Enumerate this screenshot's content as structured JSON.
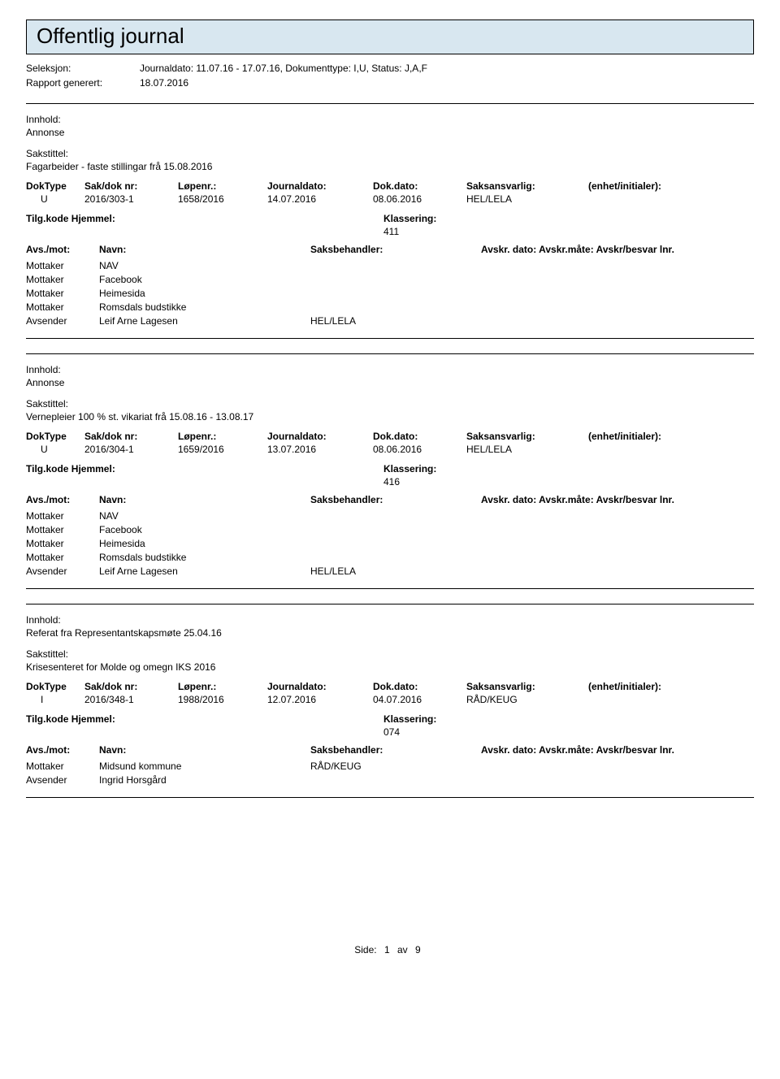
{
  "page_title": "Offentlig journal",
  "meta": {
    "seleksjon_label": "Seleksjon:",
    "seleksjon_value": "Journaldato: 11.07.16 - 17.07.16, Dokumenttype: I,U, Status: J,A,F",
    "rapport_label": "Rapport generert:",
    "rapport_value": "18.07.2016"
  },
  "labels": {
    "innhold": "Innhold:",
    "sakstittel": "Sakstittel:",
    "doktype": "DokType",
    "sakdok": "Sak/dok nr:",
    "lopenr": "Løpenr.:",
    "journaldato": "Journaldato:",
    "dokdato": "Dok.dato:",
    "saksansvarlig": "Saksansvarlig:",
    "enhet": "(enhet/initialer):",
    "tilgkode": "Tilg.kode",
    "hjemmel": "Hjemmel:",
    "klassering": "Klassering:",
    "avsmot": "Avs./mot:",
    "navn": "Navn:",
    "saksbehandler": "Saksbehandler:",
    "avskr": "Avskr. dato: Avskr.måte: Avskr/besvar lnr.",
    "mottaker": "Mottaker",
    "avsender": "Avsender"
  },
  "entries": [
    {
      "innhold": "Annonse",
      "sakstittel": "Fagarbeider - faste stillingar frå 15.08.2016",
      "doktype": "U",
      "sakdok": "2016/303-1",
      "lopenr": "1658/2016",
      "journaldato": "14.07.2016",
      "dokdato": "08.06.2016",
      "saksansvarlig": "HEL/LELA",
      "enhet": "",
      "klassering": "411",
      "parties": [
        {
          "role": "Mottaker",
          "name": "NAV",
          "handler": ""
        },
        {
          "role": "Mottaker",
          "name": "Facebook",
          "handler": ""
        },
        {
          "role": "Mottaker",
          "name": "Heimesida",
          "handler": ""
        },
        {
          "role": "Mottaker",
          "name": "Romsdals budstikke",
          "handler": ""
        },
        {
          "role": "Avsender",
          "name": "Leif Arne Lagesen",
          "handler": "HEL/LELA"
        }
      ]
    },
    {
      "innhold": "Annonse",
      "sakstittel": "Vernepleier 100 % st. vikariat frå 15.08.16 - 13.08.17",
      "doktype": "U",
      "sakdok": "2016/304-1",
      "lopenr": "1659/2016",
      "journaldato": "13.07.2016",
      "dokdato": "08.06.2016",
      "saksansvarlig": "HEL/LELA",
      "enhet": "",
      "klassering": "416",
      "parties": [
        {
          "role": "Mottaker",
          "name": "NAV",
          "handler": ""
        },
        {
          "role": "Mottaker",
          "name": "Facebook",
          "handler": ""
        },
        {
          "role": "Mottaker",
          "name": "Heimesida",
          "handler": ""
        },
        {
          "role": "Mottaker",
          "name": "Romsdals budstikke",
          "handler": ""
        },
        {
          "role": "Avsender",
          "name": "Leif Arne Lagesen",
          "handler": "HEL/LELA"
        }
      ]
    },
    {
      "innhold": "Referat fra Representantskapsmøte 25.04.16",
      "sakstittel": "Krisesenteret for Molde og omegn IKS 2016",
      "doktype": "I",
      "sakdok": "2016/348-1",
      "lopenr": "1988/2016",
      "journaldato": "12.07.2016",
      "dokdato": "04.07.2016",
      "saksansvarlig": "RÅD/KEUG",
      "enhet": "",
      "klassering": "074",
      "parties": [
        {
          "role": "Mottaker",
          "name": "Midsund kommune",
          "handler": "RÅD/KEUG"
        },
        {
          "role": "Avsender",
          "name": "Ingrid Horsgård",
          "handler": ""
        }
      ]
    }
  ],
  "footer": {
    "side_label": "Side:",
    "page": "1",
    "av_label": "av",
    "total": "9"
  },
  "colors": {
    "header_bg": "#d8e7f0",
    "border": "#000000",
    "text": "#000000",
    "background": "#ffffff"
  }
}
